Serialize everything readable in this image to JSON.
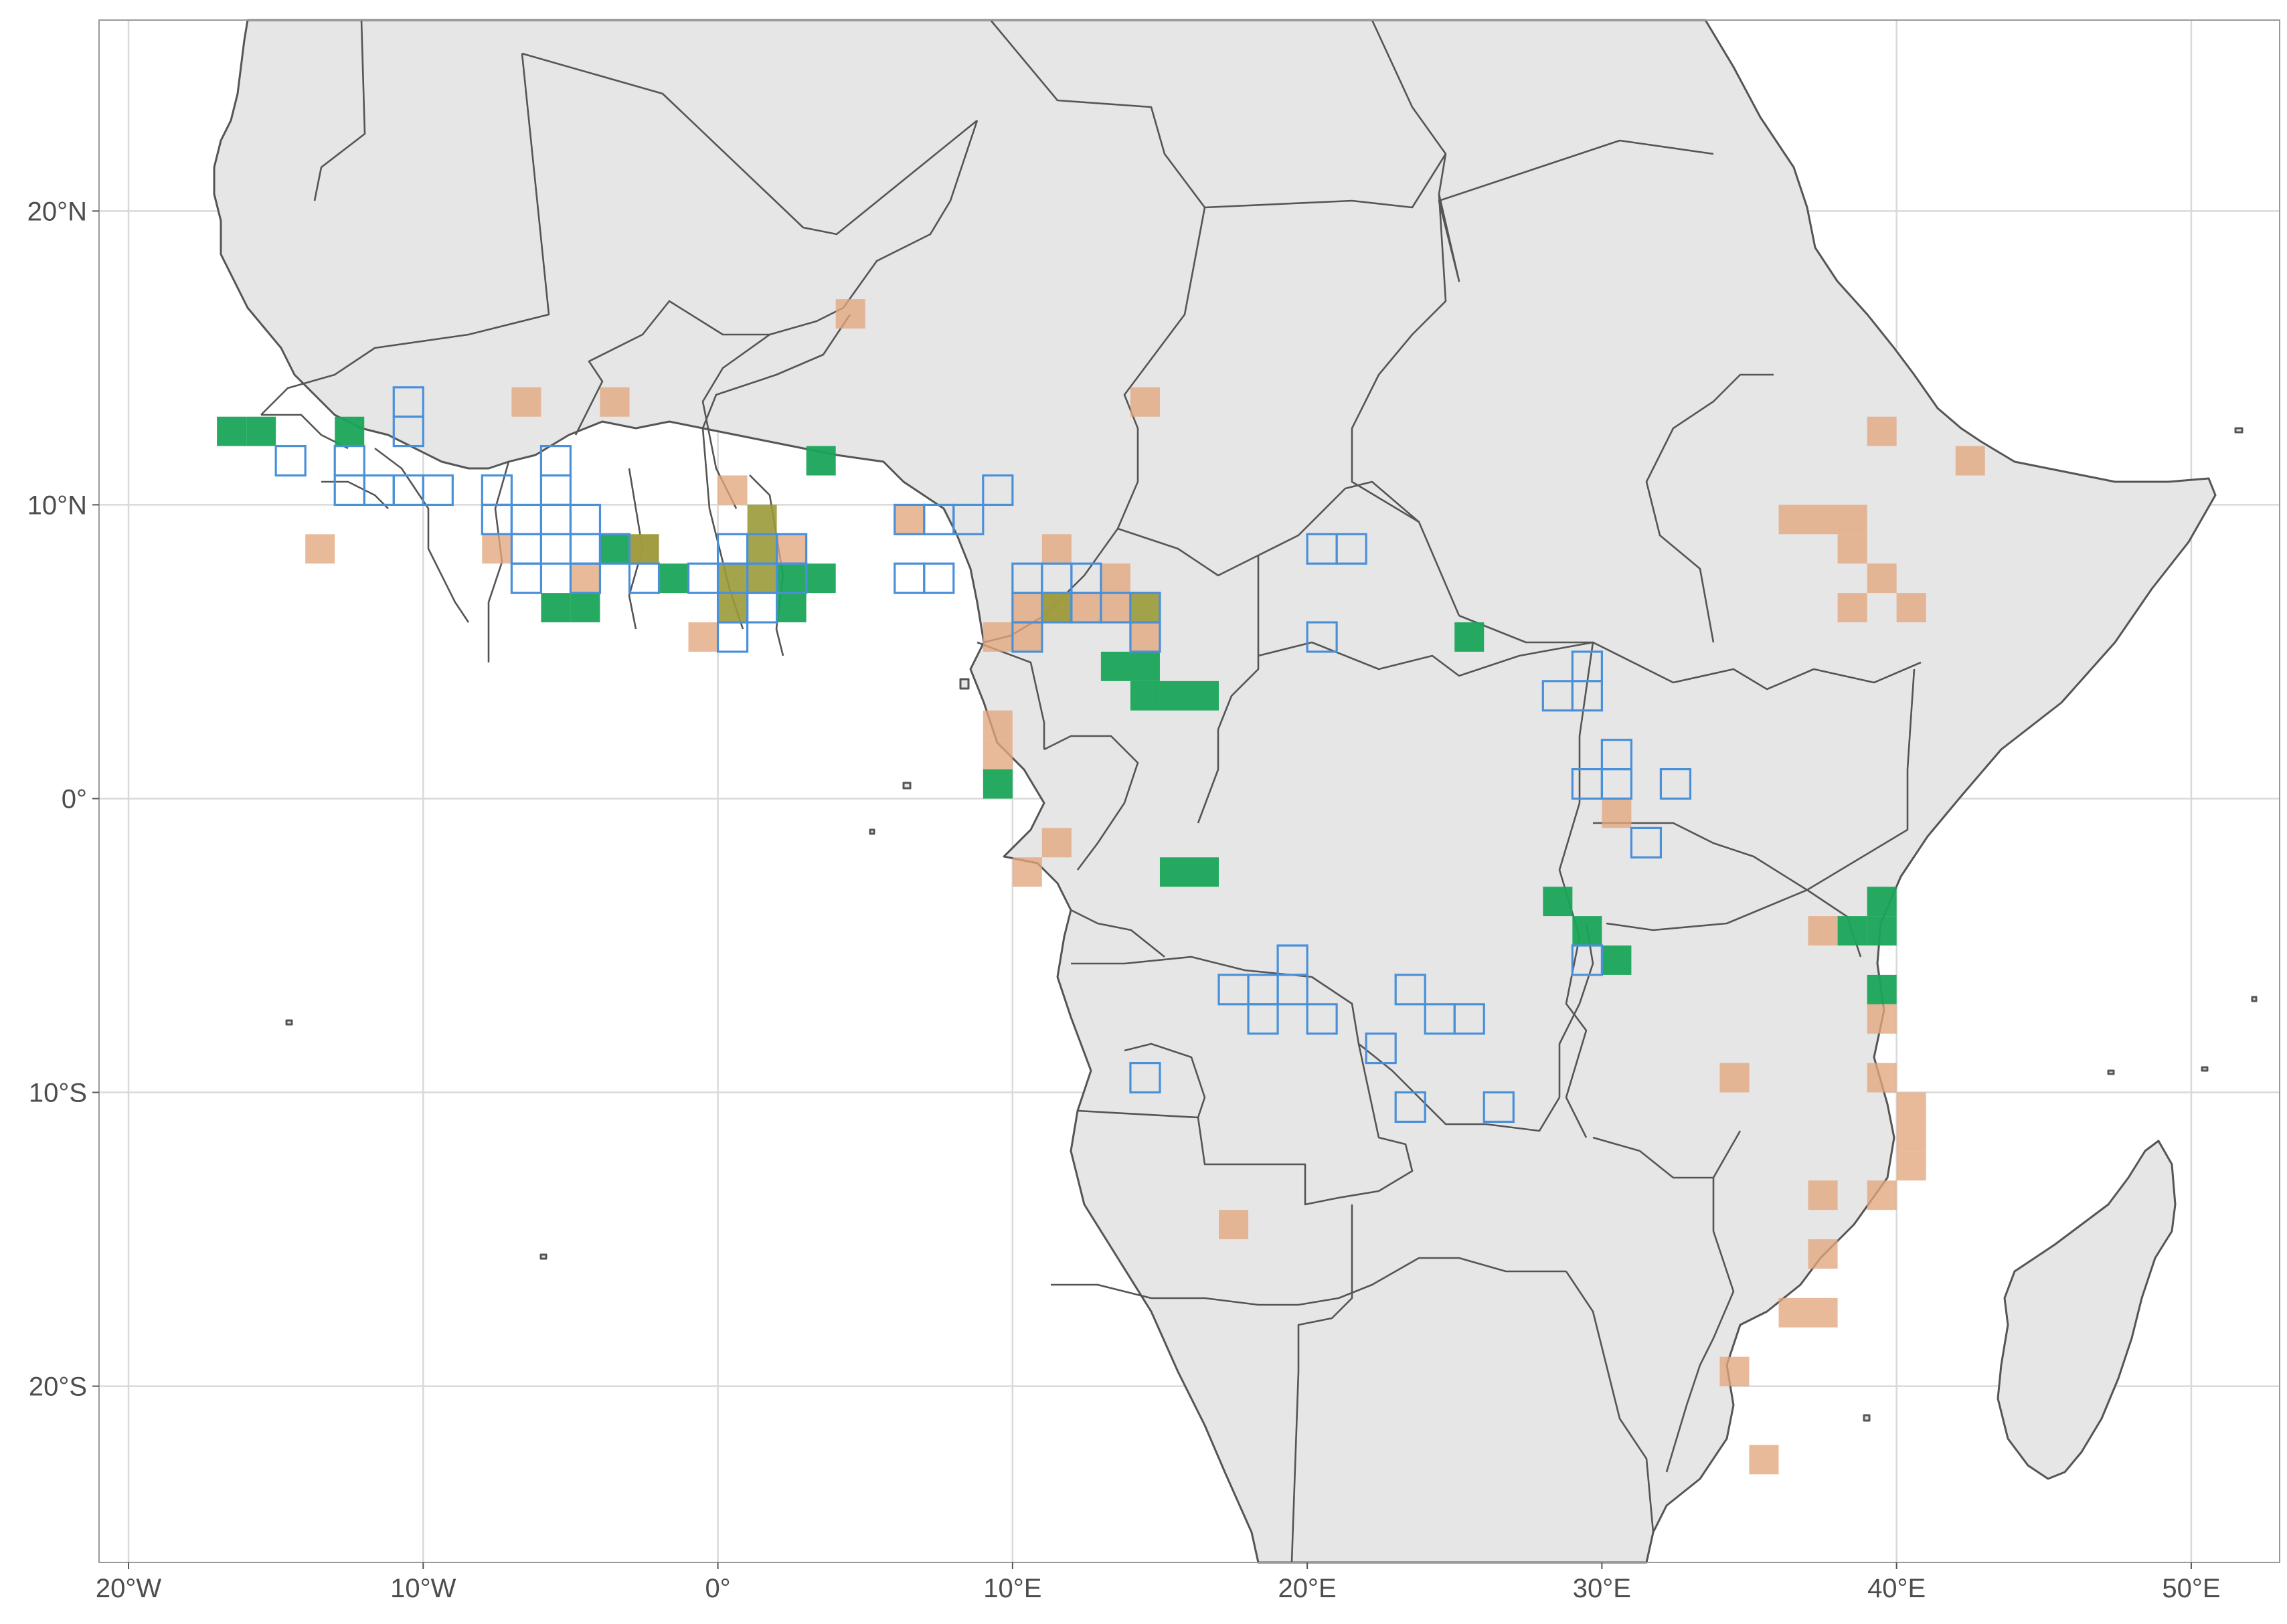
{
  "map": {
    "xlim": [
      -21,
      53
    ],
    "ylim": [
      -26,
      26.5
    ],
    "cell_size_deg": 1,
    "colors": {
      "background": "#ffffff",
      "land": "#e6e6e6",
      "border": "#555555",
      "grid": "#d9d9d9",
      "tan": "#e1a67e",
      "green": "#1aa55a",
      "blue_outline": "#4a90d9"
    },
    "x_ticks": [
      {
        "value": -20,
        "label": "20°W"
      },
      {
        "value": -10,
        "label": "10°W"
      },
      {
        "value": 0,
        "label": "0°"
      },
      {
        "value": 10,
        "label": "10°E"
      },
      {
        "value": 20,
        "label": "20°E"
      },
      {
        "value": 30,
        "label": "30°E"
      },
      {
        "value": 40,
        "label": "40°E"
      },
      {
        "value": 50,
        "label": "50°E"
      }
    ],
    "y_ticks": [
      {
        "value": 20,
        "label": "20°N"
      },
      {
        "value": 10,
        "label": "10°N"
      },
      {
        "value": 0,
        "label": "0°"
      },
      {
        "value": -10,
        "label": "10°S"
      },
      {
        "value": -20,
        "label": "20°S"
      }
    ],
    "cells": {
      "tan": [
        [
          4,
          16
        ],
        [
          -7,
          13
        ],
        [
          -4,
          13
        ],
        [
          14,
          13
        ],
        [
          39,
          12
        ],
        [
          42,
          11
        ],
        [
          0,
          10
        ],
        [
          6,
          9
        ],
        [
          11,
          8
        ],
        [
          -14,
          8
        ],
        [
          -8,
          8
        ],
        [
          -5,
          7
        ],
        [
          -3,
          8
        ],
        [
          2,
          8
        ],
        [
          36,
          9
        ],
        [
          37,
          9
        ],
        [
          38,
          9
        ],
        [
          38,
          8
        ],
        [
          39,
          7
        ],
        [
          38,
          6
        ],
        [
          40,
          6
        ],
        [
          13,
          7
        ],
        [
          10,
          6
        ],
        [
          11,
          6
        ],
        [
          12,
          6
        ],
        [
          13,
          6
        ],
        [
          14,
          5
        ],
        [
          9,
          5
        ],
        [
          10,
          5
        ],
        [
          -1,
          5
        ],
        [
          9,
          1
        ],
        [
          9,
          2
        ],
        [
          30,
          -1
        ],
        [
          11,
          -2
        ],
        [
          10,
          -3
        ],
        [
          37,
          -5
        ],
        [
          39,
          -8
        ],
        [
          34,
          -10
        ],
        [
          39,
          -10
        ],
        [
          40,
          -11
        ],
        [
          40,
          -12
        ],
        [
          40,
          -13
        ],
        [
          37,
          -14
        ],
        [
          39,
          -14
        ],
        [
          17,
          -15
        ],
        [
          37,
          -16
        ],
        [
          36,
          -18
        ],
        [
          37,
          -18
        ],
        [
          34,
          -20
        ],
        [
          35,
          -23
        ]
      ],
      "green": [
        [
          -17,
          12
        ],
        [
          -16,
          12
        ],
        [
          -13,
          12
        ],
        [
          3,
          11
        ],
        [
          -4,
          8
        ],
        [
          -2,
          7
        ],
        [
          -6,
          6
        ],
        [
          -5,
          6
        ],
        [
          2,
          7
        ],
        [
          3,
          7
        ],
        [
          2,
          6
        ],
        [
          13,
          4
        ],
        [
          14,
          4
        ],
        [
          14,
          3
        ],
        [
          15,
          3
        ],
        [
          16,
          3
        ],
        [
          25,
          5
        ],
        [
          9,
          0
        ],
        [
          15,
          -3
        ],
        [
          16,
          -3
        ],
        [
          28,
          -4
        ],
        [
          29,
          -5
        ],
        [
          30,
          -6
        ],
        [
          38,
          -5
        ],
        [
          39,
          -5
        ],
        [
          39,
          -4
        ],
        [
          39,
          -7
        ]
      ],
      "olive": [
        [
          -3,
          8
        ],
        [
          1,
          8
        ],
        [
          1,
          9
        ],
        [
          0,
          7
        ],
        [
          1,
          7
        ],
        [
          0,
          6
        ],
        [
          11,
          6
        ],
        [
          14,
          6
        ]
      ],
      "blue": [
        [
          -11,
          13
        ],
        [
          -11,
          12
        ],
        [
          -15,
          11
        ],
        [
          -13,
          11
        ],
        [
          -13,
          10
        ],
        [
          -12,
          10
        ],
        [
          -11,
          10
        ],
        [
          -10,
          10
        ],
        [
          -6,
          11
        ],
        [
          -6,
          10
        ],
        [
          -8,
          10
        ],
        [
          -8,
          9
        ],
        [
          -7,
          9
        ],
        [
          -6,
          9
        ],
        [
          -5,
          9
        ],
        [
          -7,
          8
        ],
        [
          -6,
          8
        ],
        [
          -5,
          8
        ],
        [
          -4,
          8
        ],
        [
          -7,
          7
        ],
        [
          -5,
          7
        ],
        [
          -3,
          7
        ],
        [
          -1,
          7
        ],
        [
          0,
          8
        ],
        [
          1,
          8
        ],
        [
          2,
          8
        ],
        [
          0,
          7
        ],
        [
          1,
          7
        ],
        [
          2,
          7
        ],
        [
          0,
          6
        ],
        [
          1,
          6
        ],
        [
          0,
          5
        ],
        [
          9,
          10
        ],
        [
          6,
          9
        ],
        [
          7,
          9
        ],
        [
          8,
          9
        ],
        [
          6,
          7
        ],
        [
          7,
          7
        ],
        [
          10,
          7
        ],
        [
          11,
          7
        ],
        [
          12,
          7
        ],
        [
          10,
          6
        ],
        [
          11,
          6
        ],
        [
          12,
          6
        ],
        [
          13,
          6
        ],
        [
          14,
          6
        ],
        [
          14,
          5
        ],
        [
          10,
          5
        ],
        [
          20,
          8
        ],
        [
          21,
          8
        ],
        [
          20,
          5
        ],
        [
          29,
          4
        ],
        [
          28,
          3
        ],
        [
          29,
          3
        ],
        [
          30,
          1
        ],
        [
          29,
          0
        ],
        [
          30,
          0
        ],
        [
          32,
          0
        ],
        [
          31,
          -2
        ],
        [
          29,
          -6
        ],
        [
          19,
          -6
        ],
        [
          17,
          -7
        ],
        [
          18,
          -7
        ],
        [
          19,
          -7
        ],
        [
          18,
          -8
        ],
        [
          20,
          -8
        ],
        [
          23,
          -7
        ],
        [
          24,
          -8
        ],
        [
          25,
          -8
        ],
        [
          22,
          -9
        ],
        [
          14,
          -10
        ],
        [
          23,
          -11
        ],
        [
          26,
          -11
        ]
      ]
    }
  }
}
